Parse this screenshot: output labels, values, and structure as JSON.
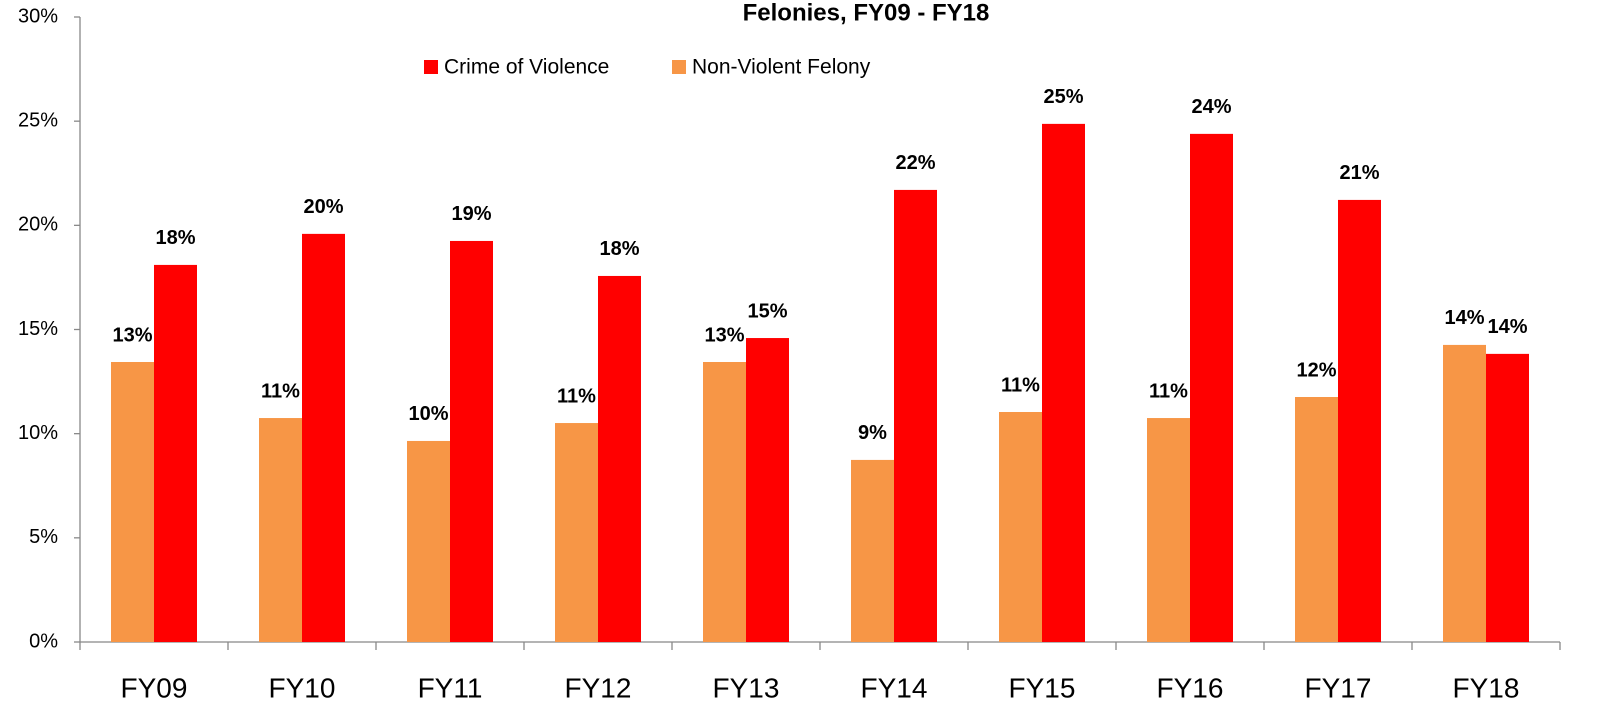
{
  "chart_data": {
    "type": "bar",
    "title": "Felonies, FY09 - FY18",
    "categories": [
      "FY09",
      "FY10",
      "FY11",
      "FY12",
      "FY13",
      "FY14",
      "FY15",
      "FY16",
      "FY17",
      "FY18"
    ],
    "series": [
      {
        "name": "Crime of Violence",
        "color": "#ff0000",
        "values": [
          18.1,
          19.59,
          19.25,
          17.57,
          14.59,
          21.7,
          24.87,
          24.39,
          21.22,
          13.83
        ],
        "value_labels": [
          "18%",
          "20%",
          "19%",
          "18%",
          "15%",
          "22%",
          "25%",
          "24%",
          "21%",
          "14%"
        ]
      },
      {
        "name": "Non-Violent Felony",
        "color": "#f79646",
        "values": [
          13.44,
          10.75,
          9.65,
          10.51,
          13.44,
          8.74,
          11.04,
          10.75,
          11.76,
          14.26
        ],
        "value_labels": [
          "13%",
          "11%",
          "10%",
          "11%",
          "13%",
          "9%",
          "11%",
          "11%",
          "12%",
          "14%"
        ]
      }
    ],
    "ylim": [
      0,
      30
    ],
    "yticks": [
      {
        "value": 0,
        "label": "0%"
      },
      {
        "value": 5,
        "label": "5%"
      },
      {
        "value": 10,
        "label": "10%"
      },
      {
        "value": 15,
        "label": "15%"
      },
      {
        "value": 20,
        "label": "20%"
      },
      {
        "value": 25,
        "label": "25%"
      },
      {
        "value": 30,
        "label": "30%"
      }
    ],
    "grid": false
  }
}
